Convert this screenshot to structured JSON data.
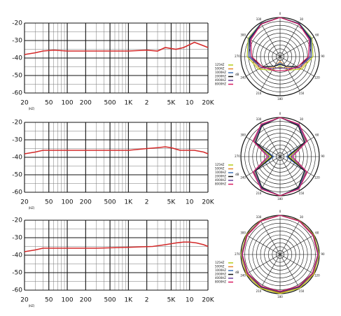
{
  "chart_data": [
    {
      "type": "line",
      "xlabel": "(HZ)",
      "log_x": true,
      "xlim": [
        20,
        20000
      ],
      "ylim": [
        -60,
        -20
      ],
      "xticks": [
        20,
        50,
        100,
        200,
        500,
        {
          "value": 1000,
          "label": "1K"
        },
        {
          "value": 2000,
          "label": "2"
        },
        {
          "value": 5000,
          "label": "5K"
        },
        {
          "value": 10000,
          "label": "10"
        },
        {
          "value": 20000,
          "label": "20K"
        }
      ],
      "xgrid": [
        30,
        40,
        60,
        70,
        80,
        90,
        300,
        400,
        600,
        700,
        800,
        900,
        3000,
        4000,
        6000,
        7000,
        8000,
        9000
      ],
      "yticks": [
        -20,
        -30,
        -40,
        -50,
        -60
      ],
      "ygrid": [
        -25,
        -35,
        -45,
        -55
      ],
      "x": [
        20,
        30,
        40,
        60,
        100,
        300,
        1000,
        2000,
        3000,
        4000,
        6000,
        8000,
        12000,
        17000,
        20000
      ],
      "series": [
        {
          "color": "#d42a2a",
          "values": [
            -38,
            -37,
            -36,
            -35.5,
            -36,
            -36,
            -36,
            -35.5,
            -36,
            -34,
            -35,
            -34,
            -31,
            -33,
            -34
          ]
        }
      ]
    },
    {
      "type": "polar",
      "rlim": [
        -25,
        0
      ],
      "rticks": [
        -22.5,
        -20,
        -17.5,
        -15,
        -12.5,
        -10,
        -7.5,
        -5,
        -2.5,
        0
      ],
      "angles": [
        0,
        30,
        60,
        90,
        120,
        150,
        180,
        210,
        240,
        270,
        300,
        330
      ],
      "unit": "dB",
      "series": [
        {
          "name": "125HZ",
          "color": "#b5cc18",
          "values": [
            0,
            -0.5,
            -1.5,
            -4,
            -9,
            -15,
            -19,
            -15,
            -9,
            -4,
            -1.5,
            -0.5
          ]
        },
        {
          "name": "500HZ",
          "color": "#e8862a",
          "values": [
            0,
            -0.5,
            -2,
            -5,
            -10,
            -17,
            -22,
            -17,
            -10,
            -5,
            -2,
            -0.5
          ]
        },
        {
          "name": "1000HZ",
          "color": "#3b6fb6",
          "values": [
            0,
            -0.5,
            -2,
            -5,
            -11,
            -18,
            -21,
            -18,
            -11,
            -5,
            -2,
            -0.5
          ]
        },
        {
          "name": "2000HZ",
          "color": "#111111",
          "values": [
            0,
            -0.8,
            -2.5,
            -6,
            -12,
            -18,
            -20,
            -18,
            -12,
            -6,
            -2.5,
            -0.8
          ]
        },
        {
          "name": "4000HZ",
          "color": "#6b3fa0",
          "values": [
            0,
            -1,
            -3,
            -6,
            -11,
            -16,
            -18,
            -16,
            -11,
            -6,
            -3,
            -1
          ]
        },
        {
          "name": "8000HZ",
          "color": "#d81b60",
          "values": [
            0,
            -1,
            -3.5,
            -7,
            -12,
            -15,
            -16,
            -15,
            -12,
            -7,
            -3.5,
            -1
          ]
        }
      ]
    },
    {
      "type": "line",
      "xlabel": "(HZ)",
      "log_x": true,
      "xlim": [
        20,
        20000
      ],
      "ylim": [
        -60,
        -20
      ],
      "xticks": [
        20,
        50,
        100,
        200,
        500,
        {
          "value": 1000,
          "label": "1K"
        },
        {
          "value": 2000,
          "label": "2"
        },
        {
          "value": 5000,
          "label": "5K"
        },
        {
          "value": 10000,
          "label": "10"
        },
        {
          "value": 20000,
          "label": "20K"
        }
      ],
      "xgrid": [
        30,
        40,
        60,
        70,
        80,
        90,
        300,
        400,
        600,
        700,
        800,
        900,
        3000,
        4000,
        6000,
        7000,
        8000,
        9000
      ],
      "yticks": [
        -20,
        -30,
        -40,
        -50,
        -60
      ],
      "ygrid": [
        -25,
        -35,
        -45,
        -55
      ],
      "x": [
        20,
        30,
        40,
        60,
        100,
        300,
        1000,
        2000,
        3000,
        4000,
        5000,
        7000,
        12000,
        17000,
        20000
      ],
      "series": [
        {
          "color": "#d42a2a",
          "values": [
            -38,
            -37,
            -36,
            -36,
            -36,
            -36,
            -36,
            -35,
            -34.5,
            -34,
            -34.5,
            -36,
            -36,
            -37,
            -38
          ]
        }
      ]
    },
    {
      "type": "polar",
      "rlim": [
        -25,
        0
      ],
      "rticks": [
        -22.5,
        -20,
        -17.5,
        -15,
        -12.5,
        -10,
        -7.5,
        -5,
        -2.5,
        0
      ],
      "angles": [
        0,
        30,
        60,
        90,
        120,
        150,
        180,
        210,
        240,
        270,
        300,
        330
      ],
      "unit": "dB",
      "series": [
        {
          "name": "125HZ",
          "color": "#b5cc18",
          "values": [
            0,
            -1.5,
            -6,
            -19,
            -6,
            -1.5,
            0,
            -1.5,
            -6,
            -19,
            -6,
            -1.5
          ]
        },
        {
          "name": "500HZ",
          "color": "#e8862a",
          "values": [
            0,
            -1.5,
            -6,
            -20,
            -6,
            -1.5,
            0,
            -1.5,
            -6,
            -20,
            -6,
            -1.5
          ]
        },
        {
          "name": "1000HZ",
          "color": "#3b6fb6",
          "values": [
            0,
            -1.8,
            -6.5,
            -21,
            -6.5,
            -1.8,
            0,
            -1.8,
            -6.5,
            -21,
            -6.5,
            -1.8
          ]
        },
        {
          "name": "2000HZ",
          "color": "#111111",
          "values": [
            0,
            -2,
            -7,
            -20,
            -7,
            -2,
            0,
            -2,
            -7,
            -20,
            -7,
            -2
          ]
        },
        {
          "name": "4000HZ",
          "color": "#6b3fa0",
          "values": [
            0,
            -1.5,
            -5.5,
            -18,
            -5.5,
            -1.5,
            0,
            -1.5,
            -5.5,
            -18,
            -5.5,
            -1.5
          ]
        },
        {
          "name": "8000HZ",
          "color": "#d81b60",
          "values": [
            0,
            -1,
            -5,
            -17,
            -5,
            -1,
            0,
            -1,
            -5,
            -17,
            -5,
            -1
          ]
        }
      ]
    },
    {
      "type": "line",
      "xlabel": "(HZ)",
      "log_x": true,
      "xlim": [
        20,
        20000
      ],
      "ylim": [
        -60,
        -20
      ],
      "xticks": [
        20,
        50,
        100,
        200,
        500,
        {
          "value": 1000,
          "label": "1K"
        },
        {
          "value": 2000,
          "label": "2"
        },
        {
          "value": 5000,
          "label": "5K"
        },
        {
          "value": 10000,
          "label": "10"
        },
        {
          "value": 20000,
          "label": "20K"
        }
      ],
      "xgrid": [
        30,
        40,
        60,
        70,
        80,
        90,
        300,
        400,
        600,
        700,
        800,
        900,
        3000,
        4000,
        6000,
        7000,
        8000,
        9000
      ],
      "yticks": [
        -20,
        -30,
        -40,
        -50,
        -60
      ],
      "ygrid": [
        -25,
        -35,
        -45,
        -55
      ],
      "x": [
        20,
        30,
        40,
        60,
        100,
        300,
        1000,
        2500,
        4000,
        6000,
        8000,
        10000,
        13000,
        17000,
        20000
      ],
      "series": [
        {
          "color": "#d42a2a",
          "values": [
            -38,
            -37,
            -36,
            -36,
            -36,
            -36,
            -35.5,
            -35,
            -34,
            -33,
            -32.5,
            -32.5,
            -33,
            -34,
            -35
          ]
        }
      ]
    },
    {
      "type": "polar",
      "rlim": [
        -25,
        0
      ],
      "rticks": [
        -22.5,
        -20,
        -17.5,
        -15,
        -12.5,
        -10,
        -7.5,
        -5,
        -2.5,
        0
      ],
      "angles": [
        0,
        30,
        60,
        90,
        120,
        150,
        180,
        210,
        240,
        270,
        300,
        330
      ],
      "unit": "dB",
      "series": [
        {
          "name": "125HZ",
          "color": "#b5cc18",
          "values": [
            0,
            0,
            0,
            0,
            0,
            0,
            0,
            0,
            0,
            0,
            0,
            0
          ]
        },
        {
          "name": "500HZ",
          "color": "#e8862a",
          "values": [
            0,
            0,
            -0.3,
            -0.3,
            -0.3,
            -0.5,
            -0.5,
            -0.5,
            -0.3,
            -0.3,
            -0.3,
            0
          ]
        },
        {
          "name": "1000HZ",
          "color": "#3b6fb6",
          "values": [
            0,
            -0.3,
            -0.5,
            -0.5,
            -0.8,
            -0.8,
            -1,
            -0.8,
            -0.8,
            -0.5,
            -0.5,
            -0.3
          ]
        },
        {
          "name": "2000HZ",
          "color": "#111111",
          "values": [
            0,
            -0.3,
            -0.5,
            -0.8,
            -1,
            -1,
            -1,
            -1,
            -1,
            -0.8,
            -0.5,
            -0.3
          ]
        },
        {
          "name": "4000HZ",
          "color": "#6b3fa0",
          "values": [
            0,
            -0.3,
            -0.6,
            -0.8,
            -1,
            -1.2,
            -1.2,
            -1.2,
            -1,
            -0.8,
            -0.6,
            -0.3
          ]
        },
        {
          "name": "8000HZ",
          "color": "#d81b60",
          "values": [
            0,
            -0.5,
            -0.8,
            -1,
            -1.2,
            -1.5,
            -1.5,
            -1.5,
            -1.2,
            -1,
            -0.8,
            -0.5
          ]
        }
      ]
    }
  ]
}
